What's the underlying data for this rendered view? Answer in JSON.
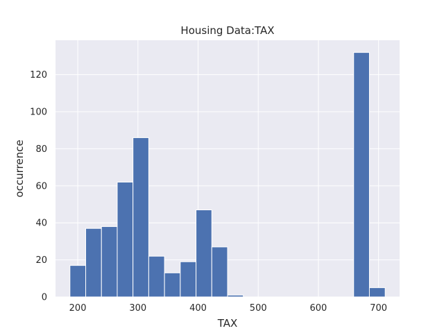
{
  "chart_data": {
    "type": "bar",
    "title": "Housing Data:TAX",
    "xlabel": "TAX",
    "ylabel": "occurrence",
    "xlim": [
      163,
      735
    ],
    "ylim": [
      0,
      138.6
    ],
    "xticks": [
      200,
      300,
      400,
      500,
      600,
      700
    ],
    "yticks": [
      0,
      20,
      40,
      60,
      80,
      100,
      120
    ],
    "grid": true,
    "bar_color": "#4c72b0",
    "background_color": "#eaeaf2",
    "bins": [
      {
        "x0": 187.0,
        "x1": 213.2,
        "count": 17
      },
      {
        "x0": 213.2,
        "x1": 239.4,
        "count": 37
      },
      {
        "x0": 239.4,
        "x1": 265.6,
        "count": 38
      },
      {
        "x0": 265.6,
        "x1": 291.8,
        "count": 62
      },
      {
        "x0": 291.8,
        "x1": 318.0,
        "count": 86
      },
      {
        "x0": 318.0,
        "x1": 344.2,
        "count": 22
      },
      {
        "x0": 344.2,
        "x1": 370.4,
        "count": 13
      },
      {
        "x0": 370.4,
        "x1": 396.6,
        "count": 19
      },
      {
        "x0": 396.6,
        "x1": 422.8,
        "count": 47
      },
      {
        "x0": 422.8,
        "x1": 449.0,
        "count": 27
      },
      {
        "x0": 449.0,
        "x1": 475.2,
        "count": 1
      },
      {
        "x0": 475.2,
        "x1": 501.4,
        "count": 0
      },
      {
        "x0": 501.4,
        "x1": 527.6,
        "count": 0
      },
      {
        "x0": 527.6,
        "x1": 553.8,
        "count": 0
      },
      {
        "x0": 553.8,
        "x1": 580.0,
        "count": 0
      },
      {
        "x0": 580.0,
        "x1": 606.2,
        "count": 0
      },
      {
        "x0": 606.2,
        "x1": 632.4,
        "count": 0
      },
      {
        "x0": 632.4,
        "x1": 658.6,
        "count": 0
      },
      {
        "x0": 658.6,
        "x1": 684.8,
        "count": 132
      },
      {
        "x0": 684.8,
        "x1": 711.0,
        "count": 5
      }
    ]
  }
}
